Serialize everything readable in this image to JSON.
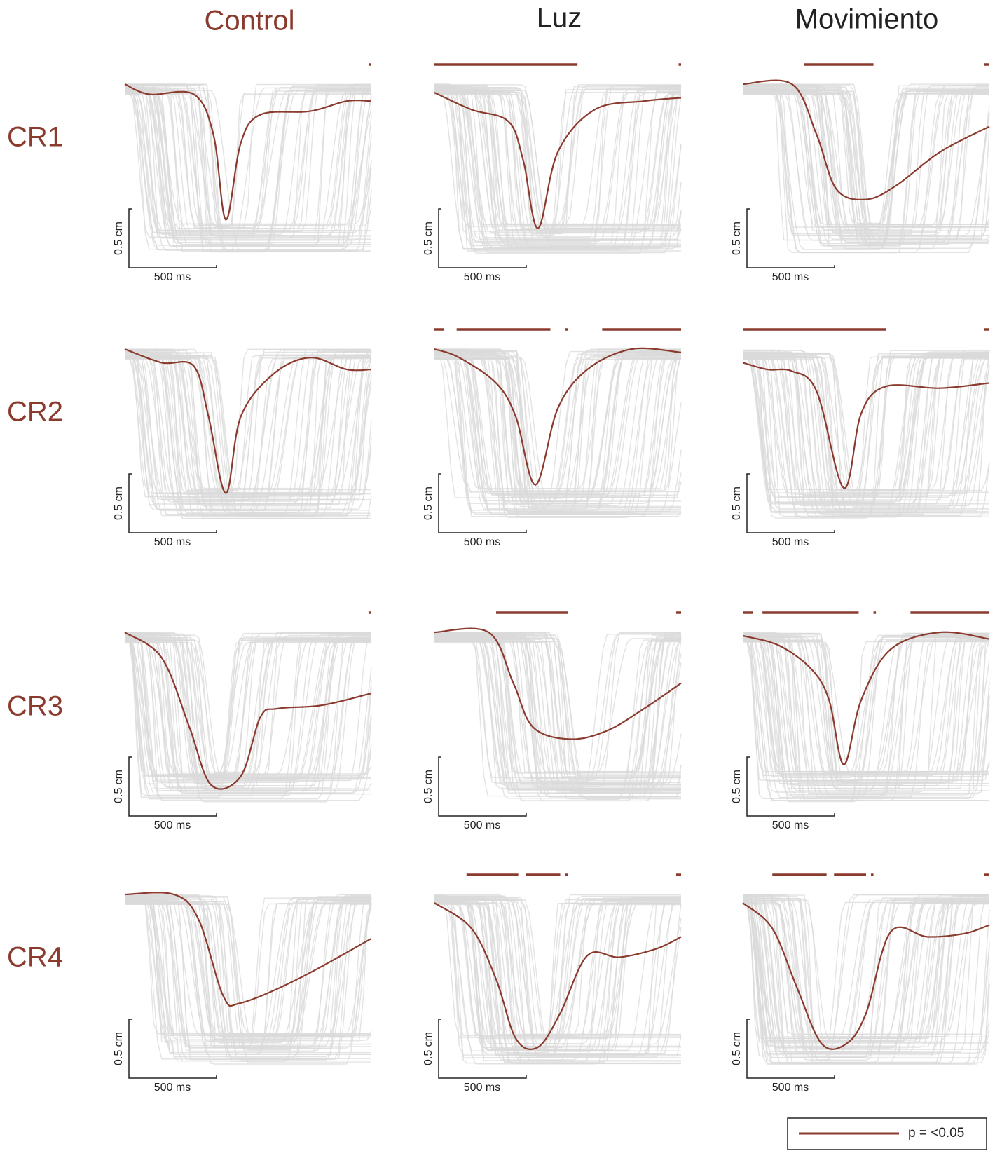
{
  "columns": [
    "Control",
    "Luz",
    "Movimiento"
  ],
  "rows": [
    "CR1",
    "CR2",
    "CR3",
    "CR4"
  ],
  "panels": [
    {
      "scale_y": "0.5 cm",
      "scale_x": "500 ms"
    },
    {
      "scale_y": "0.5 cm",
      "scale_x": "500 ms"
    },
    {
      "scale_y": "0.5 cm",
      "scale_x": "500 ms"
    },
    {
      "scale_y": "0.5 cm",
      "scale_x": "500 ms"
    },
    {
      "scale_y": "0.5 cm",
      "scale_x": "500 ms"
    },
    {
      "scale_y": "0.5 cm",
      "scale_x": "500 ms"
    },
    {
      "scale_y": "0.5 cm",
      "scale_x": "500 ms"
    },
    {
      "scale_y": "0.5 cm",
      "scale_x": "500 ms"
    },
    {
      "scale_y": "0.5 cm",
      "scale_x": "500 ms"
    },
    {
      "scale_y": "0.5 cm",
      "scale_x": "500 ms"
    },
    {
      "scale_y": "0.5 cm",
      "scale_x": "500 ms"
    },
    {
      "scale_y": "0.5 cm",
      "scale_x": "500 ms"
    }
  ],
  "legend": "p = <0.05"
}
